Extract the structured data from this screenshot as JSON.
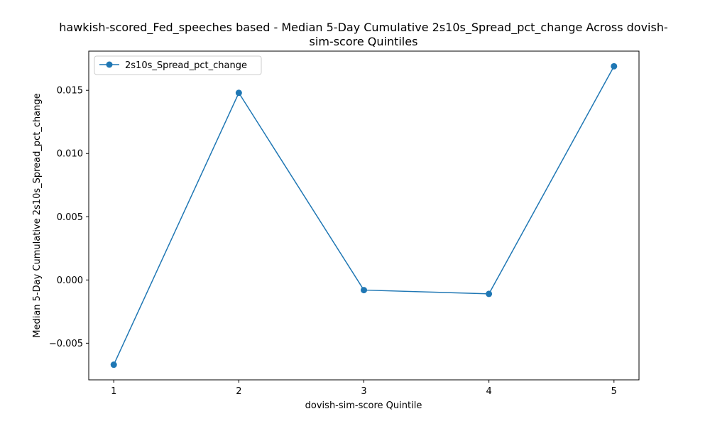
{
  "chart_data": {
    "type": "line",
    "title_lines": [
      "hawkish-scored_Fed_speeches based - Median 5-Day Cumulative 2s10s_Spread_pct_change Across dovish-",
      "sim-score Quintiles"
    ],
    "xlabel": "dovish-sim-score Quintile",
    "ylabel": "Median 5-Day Cumulative 2s10s_Spread_pct_change",
    "x": [
      1,
      2,
      3,
      4,
      5
    ],
    "x_ticks": [
      "1",
      "2",
      "3",
      "4",
      "5"
    ],
    "y_ticks": [
      -0.005,
      0.0,
      0.005,
      0.01,
      0.015
    ],
    "y_tick_labels": [
      "−0.005",
      "0.000",
      "0.005",
      "0.010",
      "0.015"
    ],
    "xlim": [
      0.8,
      5.2
    ],
    "ylim": [
      -0.0079,
      0.0181
    ],
    "grid": false,
    "legend_position": "top-left",
    "series": [
      {
        "name": "2s10s_Spread_pct_change",
        "color": "#1f77b4",
        "marker": "circle",
        "values": [
          -0.0067,
          0.0148,
          -0.0008,
          -0.0011,
          0.0169
        ]
      }
    ]
  }
}
